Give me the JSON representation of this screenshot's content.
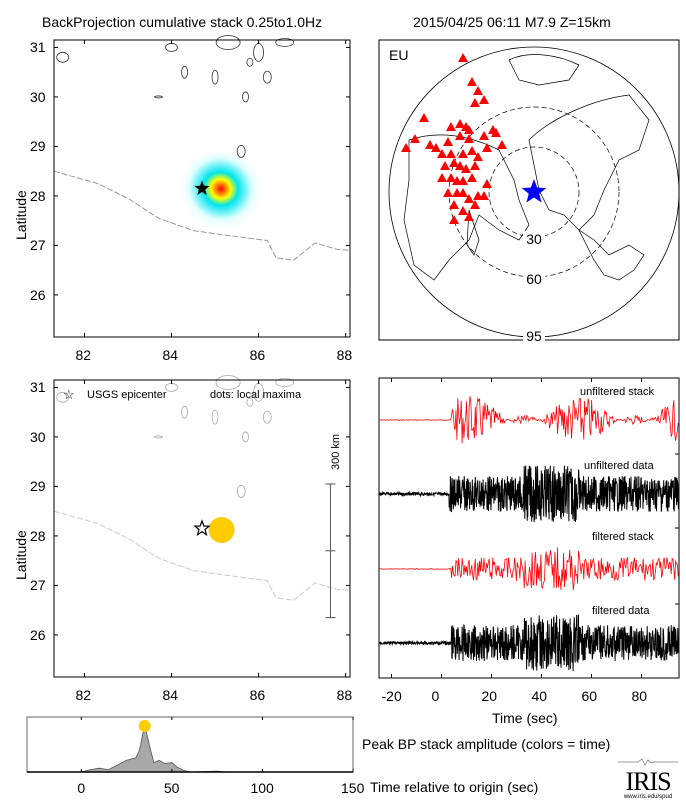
{
  "header": {
    "left_title": "BackProjection cumulative stack 0.25to1.0Hz",
    "right_title": "2015/04/25 06:11  M7.9  Z=15km"
  },
  "colors": {
    "stack_trace": "#ff0000",
    "data_trace": "#000000",
    "station_marker": "#ff0000",
    "epicenter_marker": "#0000ff",
    "local_maximum": "#ffcc00",
    "amplitude_fill": "#a8a8a8",
    "border_line": "#999999"
  },
  "chart_data": [
    {
      "id": "cumulative-stack-map",
      "type": "heatmap",
      "title": "BackProjection cumulative stack 0.25to1.0Hz",
      "xlabel": "",
      "ylabel": "Latitude",
      "xlim": [
        81.3,
        88.1
      ],
      "ylim": [
        25.15,
        31.15
      ],
      "xticks": [
        82,
        84,
        86,
        88
      ],
      "yticks": [
        26,
        27,
        28,
        29,
        30,
        31
      ],
      "epicenter": {
        "lon": 84.7,
        "lat": 28.15,
        "marker": "star-filled"
      },
      "energy_peak": {
        "lon": 85.15,
        "lat": 28.1,
        "extent_lon": [
          84.4,
          86.3
        ],
        "extent_lat": [
          27.2,
          28.8
        ],
        "colormap": [
          "#e0ffff",
          "#00e5ee",
          "#ffff00",
          "#ff8800",
          "#ff0000"
        ]
      },
      "border_line": [
        [
          81.3,
          28.5
        ],
        [
          82.3,
          28.25
        ],
        [
          83.0,
          27.95
        ],
        [
          83.7,
          27.55
        ],
        [
          84.5,
          27.3
        ],
        [
          85.3,
          27.2
        ],
        [
          86.2,
          27.1
        ],
        [
          86.4,
          26.75
        ],
        [
          86.8,
          26.7
        ],
        [
          87.3,
          27.05
        ],
        [
          87.8,
          26.92
        ],
        [
          88.1,
          26.9
        ]
      ]
    },
    {
      "id": "station-map",
      "type": "scatter",
      "region_label": "EU",
      "distance_rings_deg": [
        "30",
        "60",
        "95"
      ],
      "epicenter": {
        "marker": "star-filled",
        "color": "#0000ff"
      },
      "stations_xy_norm": [
        [
          0.28,
          0.06
        ],
        [
          0.31,
          0.14
        ],
        [
          0.33,
          0.17
        ],
        [
          0.32,
          0.21
        ],
        [
          0.35,
          0.2
        ],
        [
          0.15,
          0.26
        ],
        [
          0.24,
          0.29
        ],
        [
          0.27,
          0.28
        ],
        [
          0.29,
          0.29
        ],
        [
          0.3,
          0.3
        ],
        [
          0.12,
          0.33
        ],
        [
          0.09,
          0.36
        ],
        [
          0.17,
          0.35
        ],
        [
          0.19,
          0.36
        ],
        [
          0.23,
          0.34
        ],
        [
          0.27,
          0.32
        ],
        [
          0.3,
          0.33
        ],
        [
          0.35,
          0.32
        ],
        [
          0.36,
          0.36
        ],
        [
          0.21,
          0.38
        ],
        [
          0.24,
          0.38
        ],
        [
          0.28,
          0.38
        ],
        [
          0.31,
          0.37
        ],
        [
          0.33,
          0.39
        ],
        [
          0.22,
          0.42
        ],
        [
          0.25,
          0.41
        ],
        [
          0.27,
          0.42
        ],
        [
          0.29,
          0.43
        ],
        [
          0.32,
          0.42
        ],
        [
          0.38,
          0.3
        ],
        [
          0.39,
          0.31
        ],
        [
          0.21,
          0.46
        ],
        [
          0.24,
          0.46
        ],
        [
          0.26,
          0.47
        ],
        [
          0.28,
          0.47
        ],
        [
          0.31,
          0.46
        ],
        [
          0.41,
          0.35
        ],
        [
          0.36,
          0.48
        ],
        [
          0.23,
          0.51
        ],
        [
          0.26,
          0.51
        ],
        [
          0.28,
          0.51
        ],
        [
          0.3,
          0.53
        ],
        [
          0.33,
          0.52
        ],
        [
          0.35,
          0.52
        ],
        [
          0.32,
          0.55
        ],
        [
          0.25,
          0.55
        ],
        [
          0.28,
          0.57
        ],
        [
          0.25,
          0.6
        ],
        [
          0.3,
          0.59
        ]
      ]
    },
    {
      "id": "local-maxima-map",
      "type": "scatter",
      "ylabel": "Latitude",
      "xlim": [
        81.3,
        88.1
      ],
      "ylim": [
        25.15,
        31.15
      ],
      "xticks": [
        82,
        84,
        86,
        88
      ],
      "yticks": [
        26,
        27,
        28,
        29,
        30,
        31
      ],
      "legend": {
        "epicenter": "USGS epicenter",
        "dots": "dots: local maxima"
      },
      "epicenter": {
        "lon": 84.7,
        "lat": 28.15,
        "marker": "star-open"
      },
      "local_maxima": [
        {
          "lon": 85.15,
          "lat": 28.12,
          "time_sec": 35
        }
      ],
      "scale_bar": {
        "label": "300 km",
        "lat_top": 29.05,
        "lat_mid": 27.7,
        "lat_bottom": 26.35,
        "lon": 87.65
      }
    },
    {
      "id": "seismograms",
      "type": "line",
      "xlabel": "Time (sec)",
      "xlim": [
        -25,
        95
      ],
      "xticks": [
        -20,
        0,
        20,
        40,
        60,
        80
      ],
      "series": [
        {
          "name": "unfiltered stack",
          "color": "#ff0000",
          "onset_sec": 4
        },
        {
          "name": "unfiltered data",
          "color": "#000000",
          "onset_sec": 3
        },
        {
          "name": "filtered stack",
          "color": "#ff0000",
          "onset_sec": 4
        },
        {
          "name": "filtered data",
          "color": "#000000",
          "onset_sec": 4
        }
      ]
    },
    {
      "id": "peak-amplitude",
      "type": "area",
      "title": "Peak BP stack amplitude (colors = time)",
      "xlabel": "Time relative to origin (sec)",
      "xlim": [
        -30,
        150
      ],
      "xticks": [
        0,
        50,
        100,
        150
      ],
      "x": [
        -30,
        0,
        5,
        10,
        15,
        20,
        25,
        30,
        32,
        35,
        38,
        40,
        43,
        46,
        50,
        53,
        57,
        60,
        75,
        80,
        150
      ],
      "y": [
        0,
        0,
        0.05,
        0.08,
        0.05,
        0.15,
        0.25,
        0.3,
        0.45,
        1.0,
        0.5,
        0.2,
        0.25,
        0.18,
        0.2,
        0.1,
        0.03,
        0,
        0.02,
        0,
        0
      ],
      "peak": {
        "time_sec": 35,
        "color": "#ffcc00"
      }
    }
  ],
  "footer": {
    "amplitude_caption": "Peak BP stack amplitude (colors = time)",
    "time_caption": "Time relative to origin (sec)",
    "logo_text": "IRIS",
    "logo_url_text": "www.iris.edu/spud"
  }
}
